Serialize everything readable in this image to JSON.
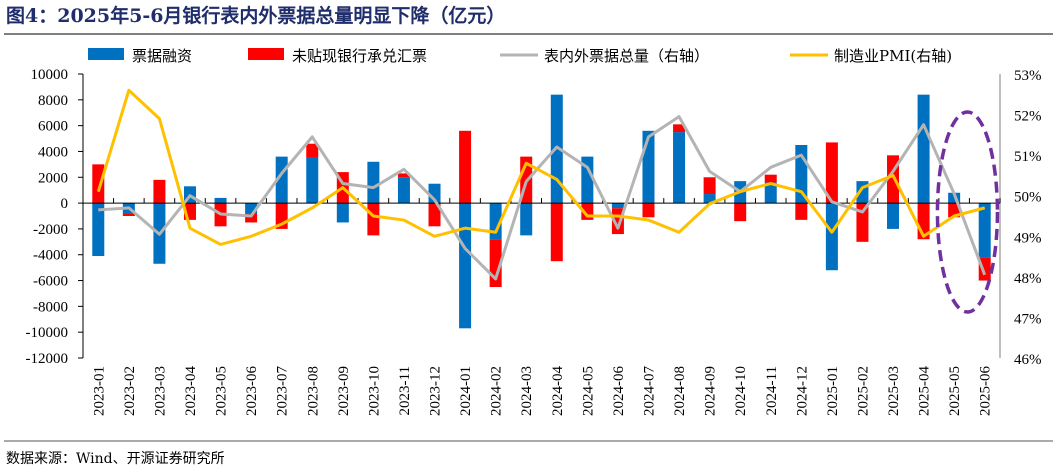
{
  "title": "图4：2025年5-6月银行表内外票据总量明显下降（亿元）",
  "source": "数据来源：Wind、开源证券研究所",
  "chart_data": {
    "type": "bar+line",
    "title": "图4：2025年5-6月银行表内外票据总量明显下降（亿元）",
    "categories": [
      "2023-01",
      "2023-02",
      "2023-03",
      "2023-04",
      "2023-05",
      "2023-06",
      "2023-07",
      "2023-08",
      "2023-09",
      "2023-10",
      "2023-11",
      "2023-12",
      "2024-01",
      "2024-02",
      "2024-03",
      "2024-04",
      "2024-05",
      "2024-06",
      "2024-07",
      "2024-08",
      "2024-09",
      "2024-10",
      "2024-11",
      "2024-12",
      "2025-01",
      "2025-02",
      "2025-03",
      "2025-04",
      "2025-05",
      "2025-06"
    ],
    "left_axis": {
      "ylim": [
        -12000,
        10000
      ],
      "ticks": [
        "10000",
        "8000",
        "6000",
        "4000",
        "2000",
        "0",
        "-2000",
        "-4000",
        "-6000",
        "-8000",
        "-10000",
        "-12000"
      ]
    },
    "right_axis": {
      "ylim": [
        46,
        53
      ],
      "ticks": [
        "53%",
        "52%",
        "51%",
        "50%",
        "49%",
        "48%",
        "47%",
        "46%"
      ]
    },
    "series": [
      {
        "name": "票据融资",
        "type": "stacked-bar",
        "axis": "left",
        "color": "#0070c0",
        "values": [
          -4100,
          -800,
          -4700,
          1300,
          400,
          -800,
          3600,
          3500,
          -1500,
          3200,
          2000,
          1500,
          -9700,
          -2800,
          -2500,
          8400,
          3600,
          -400,
          5600,
          5500,
          700,
          1700,
          1600,
          4500,
          -5200,
          1700,
          -2000,
          8400,
          800,
          -4200
        ]
      },
      {
        "name": "未贴现银行承兑汇票",
        "type": "stacked-bar",
        "axis": "left",
        "color": "#ff0000",
        "values": [
          3000,
          -200,
          1800,
          -1300,
          -1800,
          -700,
          -2000,
          1100,
          2400,
          -2500,
          300,
          -1800,
          5600,
          -3700,
          3600,
          -4500,
          -1300,
          -2000,
          -1100,
          600,
          1300,
          -1400,
          600,
          -1300,
          4700,
          -3000,
          3700,
          -2800,
          -1100,
          -1800
        ]
      },
      {
        "name": "表内外票据总量（右轴）",
        "type": "line",
        "axis": "right",
        "color": "#b4b4b4",
        "values": [
          49.65,
          49.7,
          49.05,
          50.0,
          49.55,
          49.5,
          50.55,
          51.45,
          50.3,
          50.2,
          50.65,
          49.9,
          48.7,
          47.95,
          50.35,
          51.2,
          50.7,
          49.2,
          51.45,
          51.95,
          50.6,
          50.1,
          50.7,
          51.0,
          49.85,
          49.6,
          50.6,
          51.75,
          50.05,
          48.05
        ]
      },
      {
        "name": "制造业PMI(右轴)",
        "type": "line",
        "axis": "right",
        "color": "#ffc000",
        "values": [
          50.1,
          52.6,
          51.9,
          49.2,
          48.8,
          49.0,
          49.3,
          49.7,
          50.2,
          49.5,
          49.4,
          49.0,
          49.2,
          49.1,
          50.8,
          50.4,
          49.5,
          49.5,
          49.4,
          49.1,
          49.8,
          50.1,
          50.3,
          50.1,
          49.1,
          50.2,
          50.5,
          49.0,
          49.5,
          49.7
        ]
      }
    ],
    "annotation": {
      "type": "dashed-ellipse",
      "color": "#7030a0",
      "highlights": [
        "2025-05",
        "2025-06"
      ]
    },
    "legend": "top",
    "grid": false
  }
}
